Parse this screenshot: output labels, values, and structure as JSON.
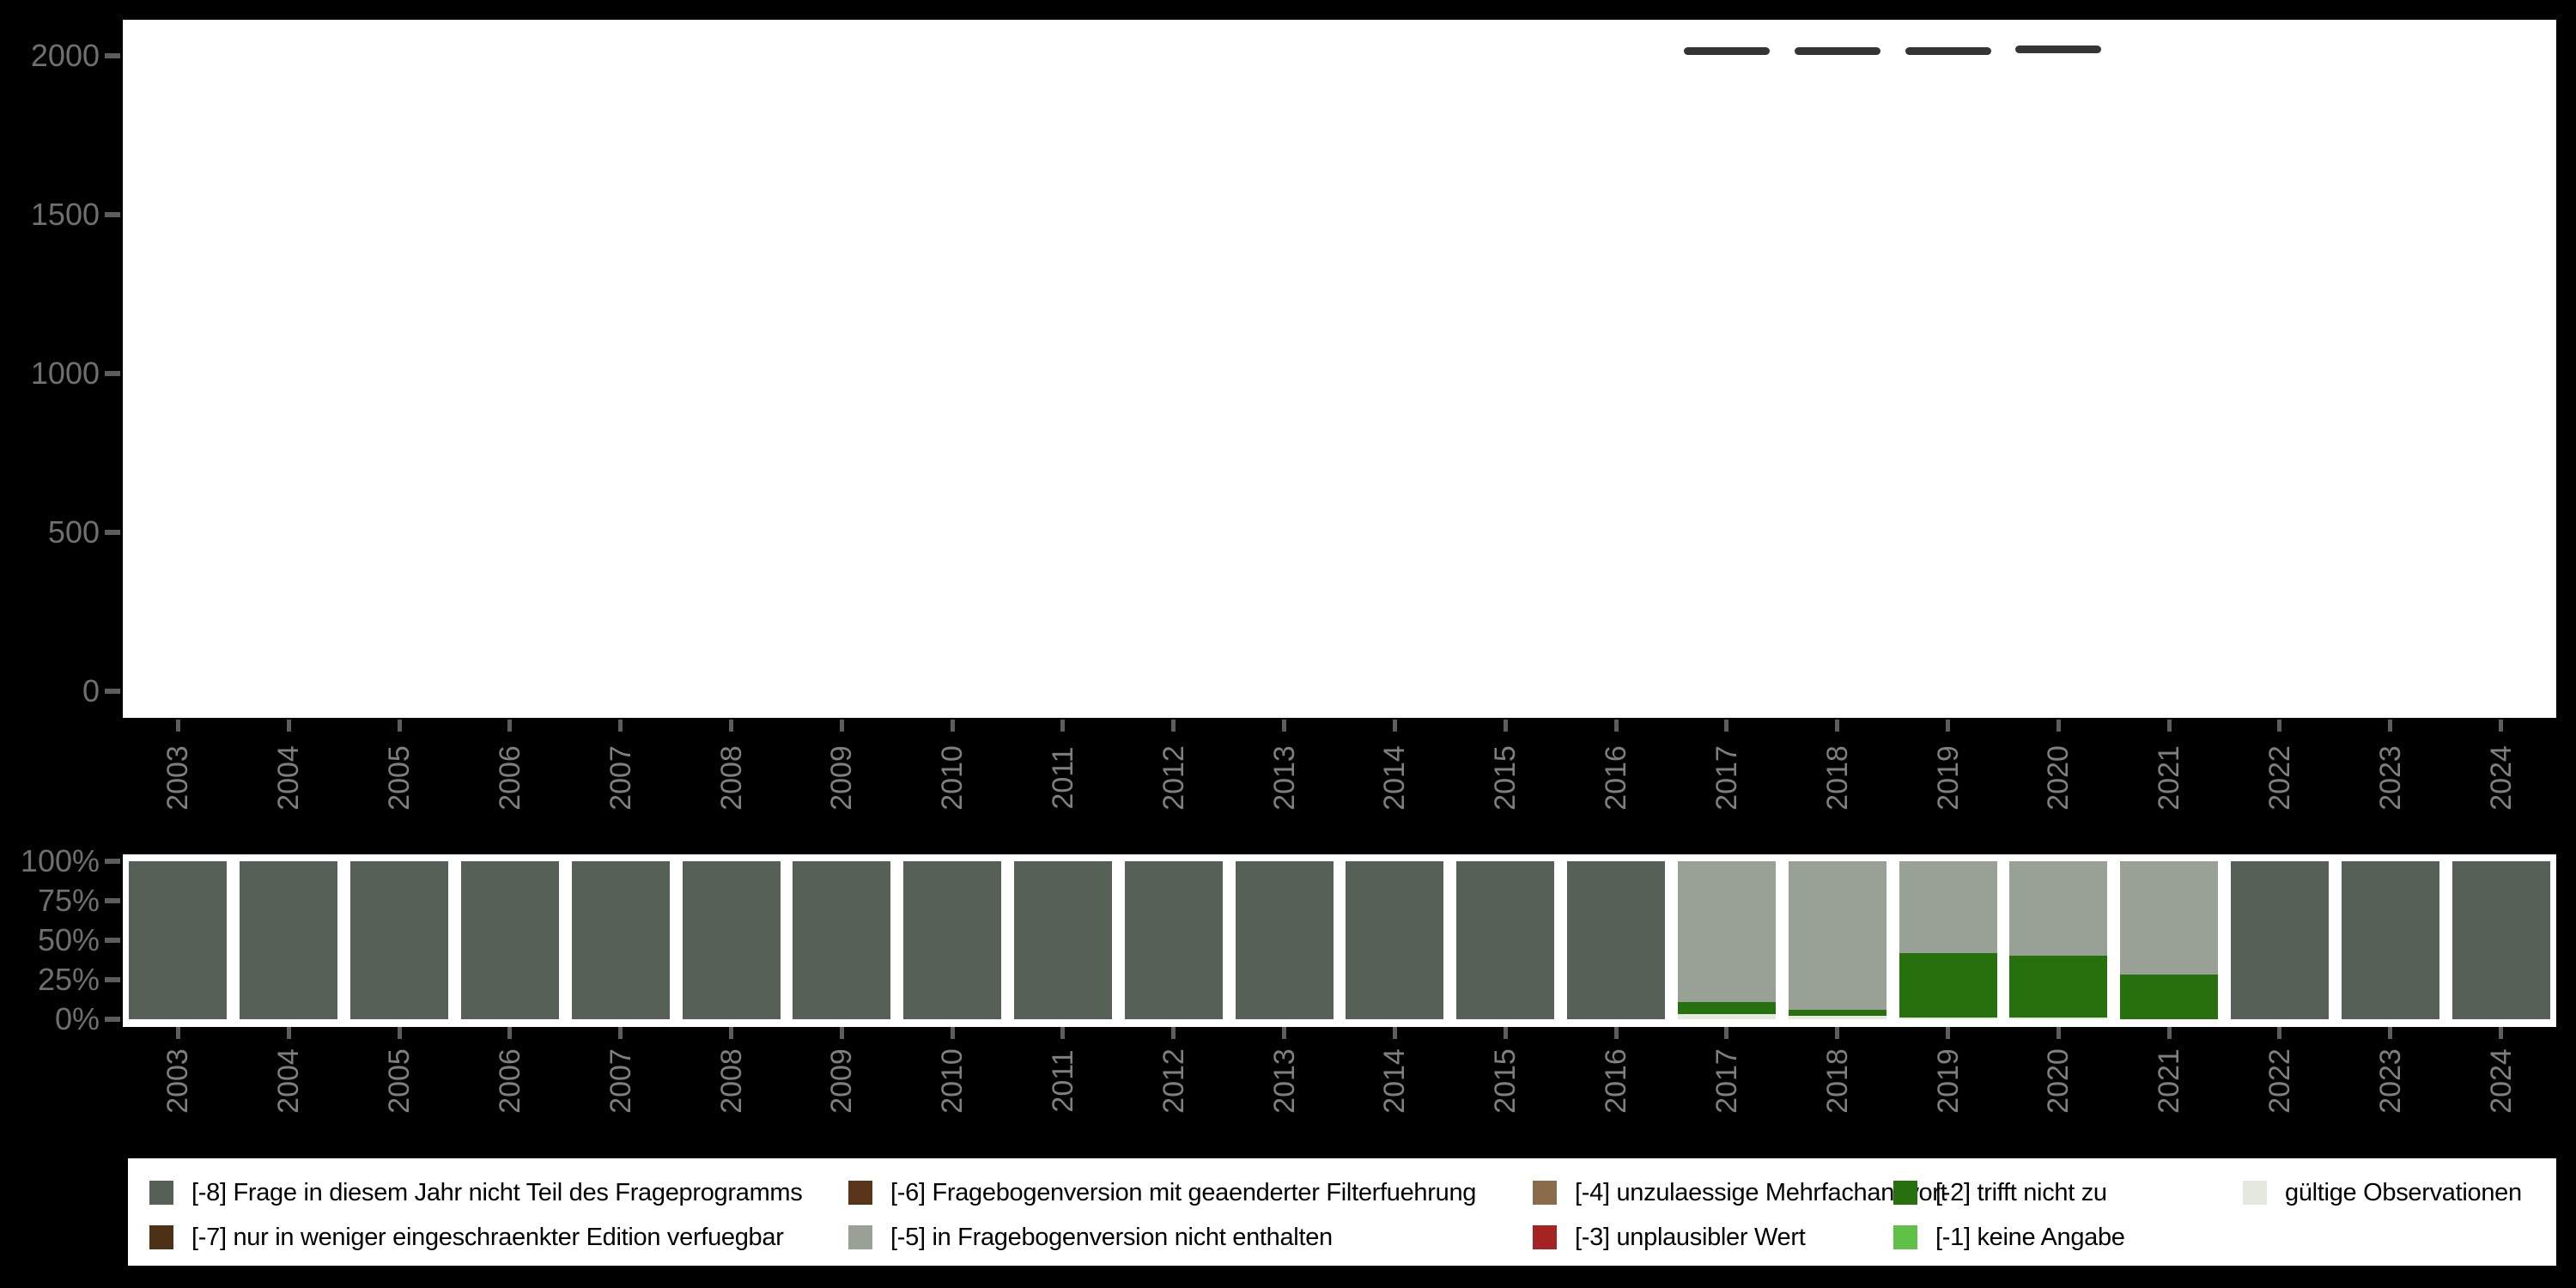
{
  "figure": {
    "background": "#000000",
    "plot_background": "#ffffff",
    "axis_label_color": "#6f6f6f",
    "year_label_color": "#7f7f7f",
    "tick_color": "#5d5d5d"
  },
  "colors": {
    "-8": "#576057",
    "-7": "#4e3016",
    "-6": "#5a3418",
    "-5": "#99a095",
    "-4": "#8a6b4a",
    "-3": "#a52323",
    "-2": "#26700e",
    "-1": "#5fc246",
    "valid": "#e4e9e0",
    "count_dash": "#353535"
  },
  "years": [
    "2003",
    "2004",
    "2005",
    "2006",
    "2007",
    "2008",
    "2009",
    "2010",
    "2011",
    "2012",
    "2013",
    "2014",
    "2015",
    "2016",
    "2017",
    "2018",
    "2019",
    "2020",
    "2021",
    "2022",
    "2023",
    "2024"
  ],
  "chart_data": [
    {
      "name": "observation-counts",
      "type": "scatter",
      "marker": "horizontal-dash",
      "x": [
        "2017",
        "2018",
        "2019",
        "2020"
      ],
      "y": [
        2015,
        2015,
        2016,
        2019
      ],
      "ylim": [
        0,
        2000
      ],
      "yticks": [
        0,
        500,
        1000,
        1500,
        2000
      ],
      "ytick_labels": [
        "0",
        "500",
        "1000",
        "1500",
        "2000"
      ],
      "xlabel": "",
      "ylabel": "",
      "grid": false,
      "legend_position": "none"
    },
    {
      "name": "missing-value-shares",
      "type": "bar",
      "subtype": "stacked-percent",
      "yticks": [
        0,
        25,
        50,
        75,
        100
      ],
      "ytick_labels": [
        "0%",
        "25%",
        "50%",
        "75%",
        "100%"
      ],
      "ylim": [
        0,
        100
      ],
      "grid": false,
      "stacks": [
        {
          "year": "2003",
          "segments": [
            {
              "code": "-8",
              "pct": 100
            }
          ]
        },
        {
          "year": "2004",
          "segments": [
            {
              "code": "-8",
              "pct": 100
            }
          ]
        },
        {
          "year": "2005",
          "segments": [
            {
              "code": "-8",
              "pct": 100
            }
          ]
        },
        {
          "year": "2006",
          "segments": [
            {
              "code": "-8",
              "pct": 100
            }
          ]
        },
        {
          "year": "2007",
          "segments": [
            {
              "code": "-8",
              "pct": 100
            }
          ]
        },
        {
          "year": "2008",
          "segments": [
            {
              "code": "-8",
              "pct": 100
            }
          ]
        },
        {
          "year": "2009",
          "segments": [
            {
              "code": "-8",
              "pct": 100
            }
          ]
        },
        {
          "year": "2010",
          "segments": [
            {
              "code": "-8",
              "pct": 100
            }
          ]
        },
        {
          "year": "2011",
          "segments": [
            {
              "code": "-8",
              "pct": 100
            }
          ]
        },
        {
          "year": "2012",
          "segments": [
            {
              "code": "-8",
              "pct": 100
            }
          ]
        },
        {
          "year": "2013",
          "segments": [
            {
              "code": "-8",
              "pct": 100
            }
          ]
        },
        {
          "year": "2014",
          "segments": [
            {
              "code": "-8",
              "pct": 100
            }
          ]
        },
        {
          "year": "2015",
          "segments": [
            {
              "code": "-8",
              "pct": 100
            }
          ]
        },
        {
          "year": "2016",
          "segments": [
            {
              "code": "-8",
              "pct": 100
            }
          ]
        },
        {
          "year": "2017",
          "segments": [
            {
              "code": "-5",
              "pct": 89
            },
            {
              "code": "-2",
              "pct": 8
            },
            {
              "code": "valid",
              "pct": 3
            }
          ]
        },
        {
          "year": "2018",
          "segments": [
            {
              "code": "-5",
              "pct": 94
            },
            {
              "code": "-2",
              "pct": 4
            },
            {
              "code": "valid",
              "pct": 2
            }
          ]
        },
        {
          "year": "2019",
          "segments": [
            {
              "code": "-5",
              "pct": 58
            },
            {
              "code": "-2",
              "pct": 41
            },
            {
              "code": "valid",
              "pct": 1
            }
          ]
        },
        {
          "year": "2020",
          "segments": [
            {
              "code": "-5",
              "pct": 60
            },
            {
              "code": "-2",
              "pct": 39
            },
            {
              "code": "valid",
              "pct": 1
            }
          ]
        },
        {
          "year": "2021",
          "segments": [
            {
              "code": "-5",
              "pct": 72
            },
            {
              "code": "-2",
              "pct": 28
            }
          ]
        },
        {
          "year": "2022",
          "segments": [
            {
              "code": "-8",
              "pct": 100
            }
          ]
        },
        {
          "year": "2023",
          "segments": [
            {
              "code": "-8",
              "pct": 100
            }
          ]
        },
        {
          "year": "2024",
          "segments": [
            {
              "code": "-8",
              "pct": 100
            }
          ]
        }
      ]
    }
  ],
  "legend": {
    "rows": [
      [
        {
          "code": "-8",
          "label": "[-8] Frage in diesem Jahr nicht Teil des Frageprogramms"
        },
        {
          "code": "-6",
          "label": "[-6] Fragebogenversion mit geaenderter Filterfuehrung"
        },
        {
          "code": "-4",
          "label": "[-4] unzulaessige Mehrfachantwort"
        },
        {
          "code": "-2",
          "label": "[-2] trifft nicht zu"
        },
        {
          "code": "valid",
          "label": "gültige Observationen"
        }
      ],
      [
        {
          "code": "-7",
          "label": "[-7] nur in weniger eingeschraenkter Edition verfuegbar"
        },
        {
          "code": "-5",
          "label": "[-5] in Fragebogenversion nicht enthalten"
        },
        {
          "code": "-3",
          "label": "[-3] unplausibler Wert"
        },
        {
          "code": "-1",
          "label": "[-1] keine Angabe"
        }
      ]
    ]
  }
}
